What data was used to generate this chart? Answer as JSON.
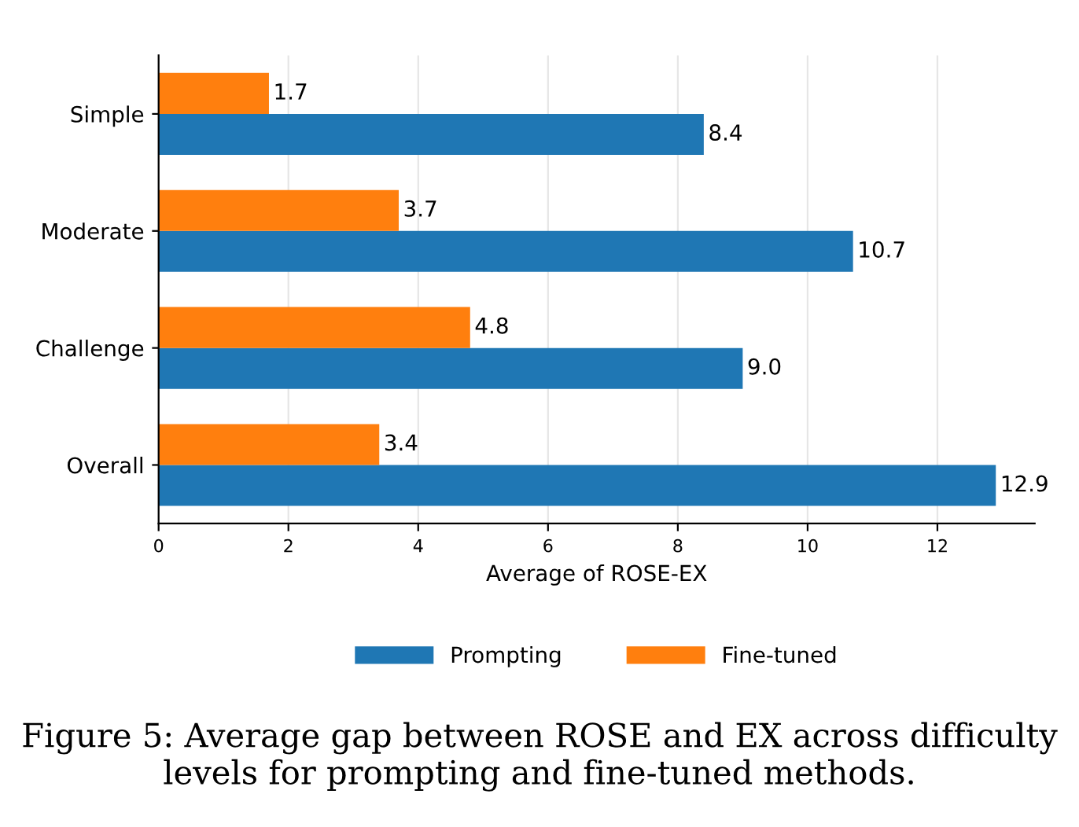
{
  "chart_data": {
    "type": "bar",
    "orientation": "horizontal",
    "categories": [
      "Simple",
      "Moderate",
      "Challenge",
      "Overall"
    ],
    "series": [
      {
        "name": "Prompting",
        "color": "#1f77b4",
        "values": [
          8.4,
          10.7,
          9.0,
          12.9
        ],
        "value_labels": [
          "8.4",
          "10.7",
          "9.0",
          "12.9"
        ]
      },
      {
        "name": "Fine-tuned",
        "color": "#ff7f0e",
        "values": [
          1.7,
          3.7,
          4.8,
          3.4
        ],
        "value_labels": [
          "1.7",
          "3.7",
          "4.8",
          "3.4"
        ]
      }
    ],
    "xlabel": "Average of ROSE-EX",
    "xlim": [
      0,
      13.5
    ],
    "xticks": [
      0,
      2,
      4,
      6,
      8,
      10,
      12
    ],
    "grid": "x",
    "legend": "bottom",
    "annotations": [
      "Figure 5: Average gap between ROSE and EX across difficulty levels for prompting and fine-tuned methods."
    ]
  }
}
